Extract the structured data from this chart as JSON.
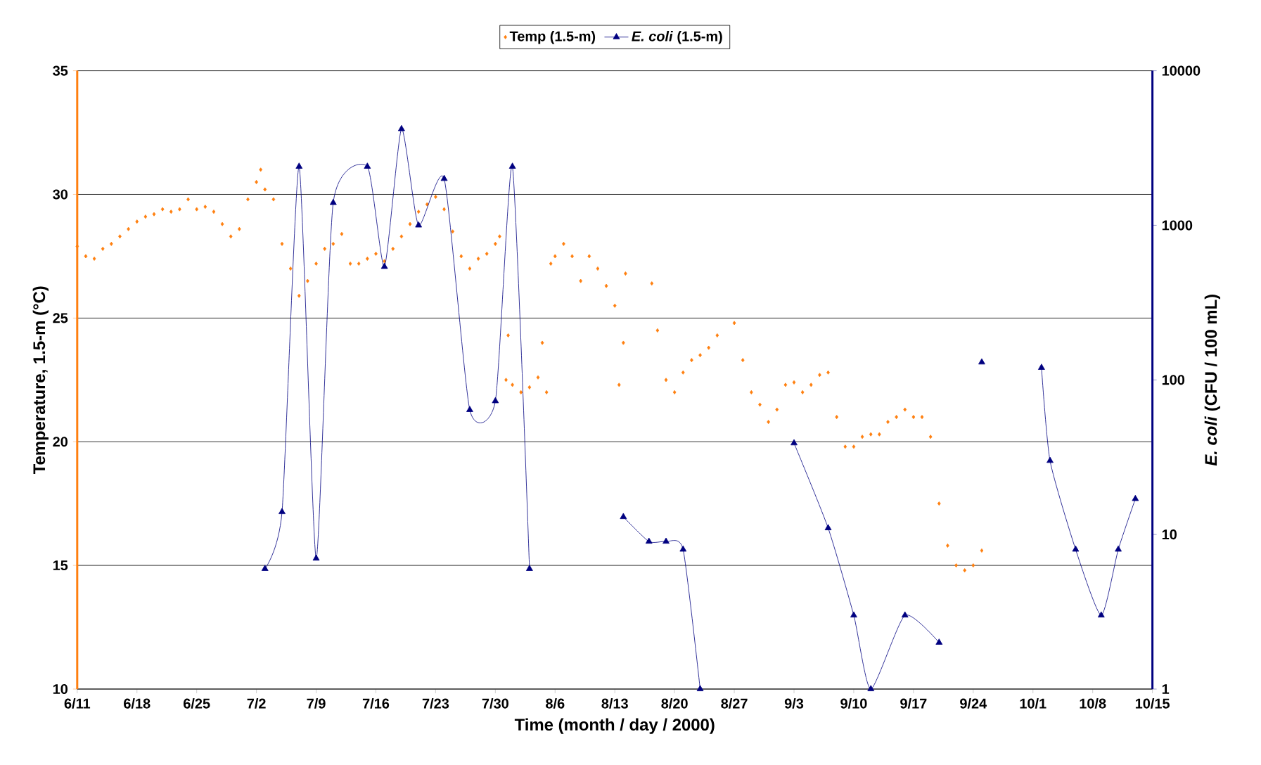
{
  "chart_data": {
    "type": "scatter",
    "xlabel": "Time (month / day / 2000)",
    "ylabel": "Temperature, 1.5-m (°C)",
    "y2label": "*E. coli* (CFU / 100 mL)",
    "xlim": [
      "2000-06-11",
      "2000-10-15"
    ],
    "xticks": [
      {
        "value": "2000-06-11",
        "label": "6/11"
      },
      {
        "value": "2000-06-18",
        "label": "6/18"
      },
      {
        "value": "2000-06-25",
        "label": "6/25"
      },
      {
        "value": "2000-07-02",
        "label": "7/2"
      },
      {
        "value": "2000-07-09",
        "label": "7/9"
      },
      {
        "value": "2000-07-16",
        "label": "7/16"
      },
      {
        "value": "2000-07-23",
        "label": "7/23"
      },
      {
        "value": "2000-07-30",
        "label": "7/30"
      },
      {
        "value": "2000-08-06",
        "label": "8/6"
      },
      {
        "value": "2000-08-13",
        "label": "8/13"
      },
      {
        "value": "2000-08-20",
        "label": "8/20"
      },
      {
        "value": "2000-08-27",
        "label": "8/27"
      },
      {
        "value": "2000-09-03",
        "label": "9/3"
      },
      {
        "value": "2000-09-10",
        "label": "9/10"
      },
      {
        "value": "2000-09-17",
        "label": "9/17"
      },
      {
        "value": "2000-09-24",
        "label": "9/24"
      },
      {
        "value": "2000-10-01",
        "label": "10/1"
      },
      {
        "value": "2000-10-08",
        "label": "10/8"
      },
      {
        "value": "2000-10-15",
        "label": "10/15"
      }
    ],
    "ylim": [
      10,
      35
    ],
    "yticks": [
      10,
      15,
      20,
      25,
      30,
      35
    ],
    "y2lim": [
      1,
      10000
    ],
    "y2ticks": [
      1,
      10,
      100,
      1000,
      10000
    ],
    "log": "y2",
    "grid": "y",
    "legend": "top",
    "series": [
      {
        "name": "Temp (1.5-m)",
        "marker": "diamond",
        "color": "#ff7f0e",
        "x": [
          "2000-06-11",
          "2000-06-12",
          "2000-06-13",
          "2000-06-14",
          "2000-06-15",
          "2000-06-16",
          "2000-06-17",
          "2000-06-18",
          "2000-06-19",
          "2000-06-20",
          "2000-06-21",
          "2000-06-22",
          "2000-06-23",
          "2000-06-24",
          "2000-06-25",
          "2000-06-26",
          "2000-06-27",
          "2000-06-28",
          "2000-06-29",
          "2000-06-30",
          "2000-07-01",
          "2000-07-02",
          "2000-07-02T12:00",
          "2000-07-03",
          "2000-07-04",
          "2000-07-05",
          "2000-07-06",
          "2000-07-07",
          "2000-07-08",
          "2000-07-09",
          "2000-07-10",
          "2000-07-11",
          "2000-07-12",
          "2000-07-13",
          "2000-07-14",
          "2000-07-15",
          "2000-07-16",
          "2000-07-17",
          "2000-07-18",
          "2000-07-19",
          "2000-07-20",
          "2000-07-21",
          "2000-07-22",
          "2000-07-23",
          "2000-07-24",
          "2000-07-25",
          "2000-07-26",
          "2000-07-27",
          "2000-07-28",
          "2000-07-29",
          "2000-07-30",
          "2000-07-30T12:00",
          "2000-07-31T06:00",
          "2000-07-31T12:00",
          "2000-08-01",
          "2000-08-02",
          "2000-08-03",
          "2000-08-04",
          "2000-08-04T12:00",
          "2000-08-05",
          "2000-08-05T12:00",
          "2000-08-06",
          "2000-08-07",
          "2000-08-08",
          "2000-08-09",
          "2000-08-10",
          "2000-08-11",
          "2000-08-12",
          "2000-08-13",
          "2000-08-13T12:00",
          "2000-08-14",
          "2000-08-14T06:00",
          "2000-08-17T08:00",
          "2000-08-18",
          "2000-08-19",
          "2000-08-20",
          "2000-08-21",
          "2000-08-22",
          "2000-08-23",
          "2000-08-24",
          "2000-08-25",
          "2000-08-27",
          "2000-08-28",
          "2000-08-29",
          "2000-08-30",
          "2000-08-31",
          "2000-09-01",
          "2000-09-02",
          "2000-09-03",
          "2000-09-04",
          "2000-09-05",
          "2000-09-06",
          "2000-09-07",
          "2000-09-08",
          "2000-09-09",
          "2000-09-10",
          "2000-09-11",
          "2000-09-12",
          "2000-09-13",
          "2000-09-14",
          "2000-09-15",
          "2000-09-16",
          "2000-09-17",
          "2000-09-18",
          "2000-09-19",
          "2000-09-20",
          "2000-09-21",
          "2000-09-22",
          "2000-09-23",
          "2000-09-24",
          "2000-09-25"
        ],
        "values": [
          27.9,
          27.5,
          27.4,
          27.8,
          28.0,
          28.3,
          28.6,
          28.9,
          29.1,
          29.2,
          29.4,
          29.3,
          29.4,
          29.8,
          29.4,
          29.5,
          29.3,
          28.8,
          28.3,
          28.6,
          29.8,
          30.5,
          31.0,
          30.2,
          29.8,
          28.0,
          27.0,
          25.9,
          26.5,
          27.2,
          27.8,
          28.0,
          28.4,
          27.2,
          27.2,
          27.4,
          27.6,
          27.3,
          27.8,
          28.3,
          28.8,
          29.3,
          29.6,
          29.9,
          29.4,
          28.5,
          27.5,
          27.0,
          27.4,
          27.6,
          28.0,
          28.3,
          22.5,
          24.3,
          22.3,
          22.0,
          22.2,
          22.6,
          24.0,
          22.0,
          27.2,
          27.5,
          28.0,
          27.5,
          26.5,
          27.5,
          27.0,
          26.3,
          25.5,
          22.3,
          24.0,
          26.8,
          26.4,
          24.5,
          22.5,
          22.0,
          22.8,
          23.3,
          23.5,
          23.8,
          24.3,
          24.8,
          23.3,
          22.0,
          21.5,
          20.8,
          21.3,
          22.3,
          22.4,
          22.0,
          22.3,
          22.7,
          22.8,
          21.0,
          19.8,
          19.8,
          20.2,
          20.3,
          20.3,
          20.8,
          21.0,
          21.3,
          21.0,
          21.0,
          20.2,
          17.5,
          15.8,
          15.0,
          14.8,
          15.0,
          15.6
        ]
      },
      {
        "name": "*E. coli* (1.5-m)",
        "type": "line",
        "axis": "y2",
        "marker": "triangle",
        "line_style": "solid",
        "color": "#000080",
        "x": [
          "2000-07-03",
          "2000-07-05",
          "2000-07-07",
          "2000-07-09",
          "2000-07-11",
          "2000-07-15",
          "2000-07-17",
          "2000-07-19",
          "2000-07-21",
          "2000-07-24",
          "2000-07-27",
          "2000-07-30",
          "2000-08-01",
          "2000-08-03",
          "2000-08-08",
          "2000-08-14",
          "2000-08-17",
          "2000-08-19",
          "2000-08-21",
          "2000-08-23",
          "2000-08-28",
          "2000-09-03",
          "2000-09-07",
          "2000-09-10",
          "2000-09-12",
          "2000-09-16",
          "2000-09-20",
          "2000-09-22",
          "2000-09-25",
          "2000-09-28",
          "2000-10-02",
          "2000-10-03",
          "2000-10-06",
          "2000-10-09",
          "2000-10-11",
          "2000-10-13"
        ],
        "values": [
          6,
          14,
          2400,
          7,
          1400,
          2400,
          540,
          4200,
          1000,
          2000,
          64,
          73,
          2400,
          6,
          null,
          13,
          9,
          9,
          8,
          1,
          null,
          39,
          11,
          3,
          1,
          3,
          2,
          null,
          130,
          null,
          120,
          30,
          8,
          3,
          8,
          17
        ]
      }
    ]
  }
}
